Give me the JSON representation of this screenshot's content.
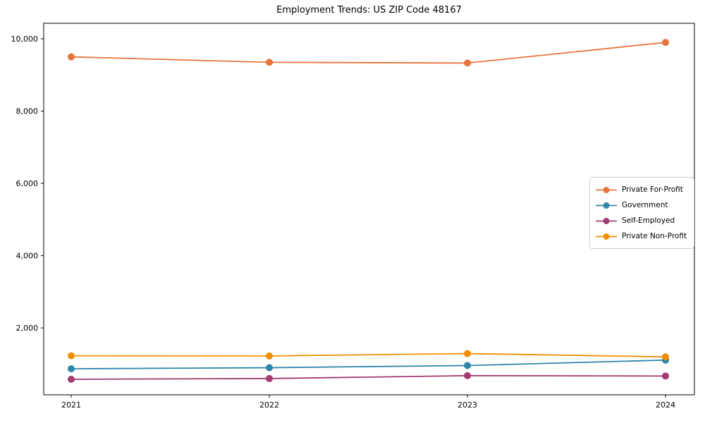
{
  "figure": {
    "background_color": "#ffffff",
    "axis_color": "#000000",
    "text_color": "#000000",
    "legend_border_color": "#cccccc"
  },
  "chart_data": {
    "type": "line",
    "title": "Employment Trends: US ZIP Code 48167",
    "xlabel": "",
    "ylabel": "",
    "x": [
      2021,
      2022,
      2023,
      2024
    ],
    "x_labels": [
      "2021",
      "2022",
      "2023",
      "2024"
    ],
    "series": [
      {
        "name": "Private For-Profit",
        "color": "#E8743B",
        "values": [
          9500,
          9350,
          9330,
          9900
        ]
      },
      {
        "name": "Government",
        "color": "#2E86AB",
        "values": [
          870,
          900,
          960,
          1110
        ]
      },
      {
        "name": "Self-Employed",
        "color": "#A23B72",
        "values": [
          580,
          600,
          680,
          670
        ]
      },
      {
        "name": "Private Non-Profit",
        "color": "#F18F01",
        "values": [
          1230,
          1225,
          1290,
          1200
        ]
      }
    ],
    "ylim": [
      150,
      10430
    ],
    "yticks": [
      {
        "value": 2000,
        "label": "2,000"
      },
      {
        "value": 4000,
        "label": "4,000"
      },
      {
        "value": 6000,
        "label": "6,000"
      },
      {
        "value": 8000,
        "label": "8,000"
      },
      {
        "value": 10000,
        "label": "10,000"
      }
    ],
    "grid": false,
    "legend_position": "center right",
    "marker": "circle"
  }
}
